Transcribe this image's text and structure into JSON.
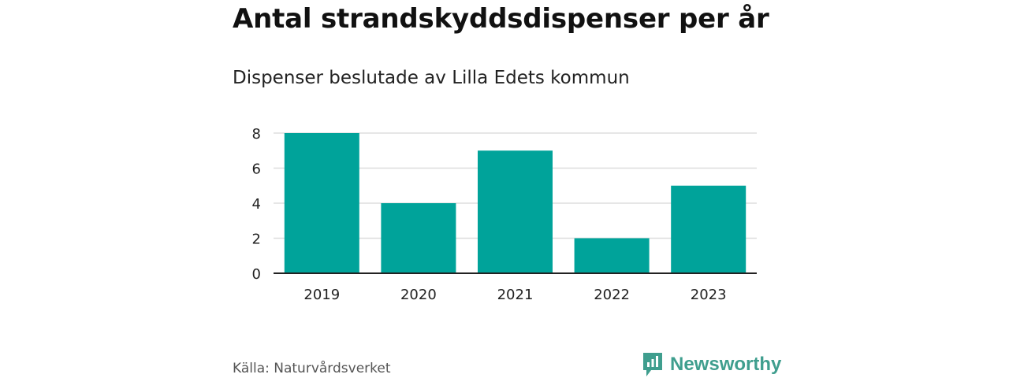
{
  "title": "Antal strandskyddsdispenser per år",
  "subtitle": "Dispenser beslutade av Lilla Edets kommun",
  "source": "Källa: Naturvårdsverket",
  "brand": {
    "name": "Newsworthy",
    "icon": "newsworthy-logo-icon",
    "color": "#3f9e8e"
  },
  "colors": {
    "bar": "#00a39a",
    "grid": "#dddddd",
    "axis": "#222222"
  },
  "chart_data": {
    "type": "bar",
    "title": "Antal strandskyddsdispenser per år",
    "subtitle": "Dispenser beslutade av Lilla Edets kommun",
    "categories": [
      "2019",
      "2020",
      "2021",
      "2022",
      "2023"
    ],
    "values": [
      8,
      4,
      7,
      2,
      5
    ],
    "xlabel": "",
    "ylabel": "",
    "ylim": [
      0,
      8
    ],
    "yticks": [
      0,
      2,
      4,
      6,
      8
    ],
    "grid": true,
    "legend": "none"
  }
}
